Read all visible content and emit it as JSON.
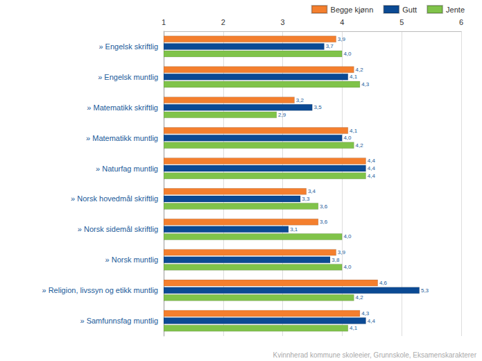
{
  "chart_data": {
    "type": "bar",
    "orientation": "horizontal",
    "categories": [
      "» Engelsk skriftlig",
      "» Engelsk muntlig",
      "» Matematikk skriftlig",
      "» Matematikk muntlig",
      "» Naturfag muntlig",
      "» Norsk hovedmål skriftlig",
      "» Norsk sidemål skriftlig",
      "» Norsk muntlig",
      "» Religion, livssyn og etikk muntlig",
      "» Samfunnsfag muntlig"
    ],
    "series": [
      {
        "name": "Begge kjønn",
        "color": "#f47f2e",
        "values": [
          3.9,
          4.2,
          3.2,
          4.1,
          4.4,
          3.4,
          3.6,
          3.9,
          4.6,
          4.3
        ],
        "value_labels": [
          "3,9",
          "4,2",
          "3,2",
          "4,1",
          "4,4",
          "3,4",
          "3,6",
          "3,9",
          "4,6",
          "4,3"
        ]
      },
      {
        "name": "Gutt",
        "color": "#0b4a94",
        "values": [
          3.7,
          4.1,
          3.5,
          4.0,
          4.4,
          3.3,
          3.1,
          3.8,
          5.3,
          4.4
        ],
        "value_labels": [
          "3,7",
          "4,1",
          "3,5",
          "4,0",
          "4,4",
          "3,3",
          "3,1",
          "3,8",
          "5,3",
          "4,4"
        ]
      },
      {
        "name": "Jente",
        "color": "#80c34a",
        "values": [
          4.0,
          4.3,
          2.9,
          4.2,
          4.4,
          3.6,
          4.0,
          4.0,
          4.2,
          4.1
        ],
        "value_labels": [
          "4,0",
          "4,3",
          "2,9",
          "4,2",
          "4,4",
          "3,6",
          "4,0",
          "4,0",
          "4,2",
          "4,1"
        ]
      }
    ],
    "xlim": [
      1,
      6
    ],
    "xticks": [
      1,
      2,
      3,
      4,
      5,
      6
    ],
    "grid": true,
    "legend": "top-right",
    "data_labels": true,
    "annotations": [
      "Kvinnherad kommune skoleeier, Grunnskole, Eksamenskarakterer"
    ]
  }
}
